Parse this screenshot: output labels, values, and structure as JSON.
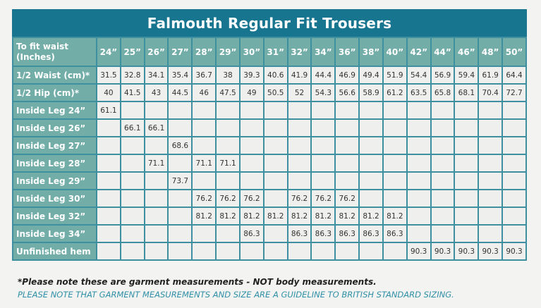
{
  "title": "Falmouth Regular Fit Trousers",
  "colors": {
    "title_bg": "#177590",
    "label_bg": "#72ada8",
    "cell_bg": "#efefed",
    "border": "#3e8fa0",
    "note_blue": "#2f8fa7"
  },
  "table": {
    "header_label": "To fit waist (Inches)",
    "sizes": [
      "24”",
      "25”",
      "26”",
      "27”",
      "28”",
      "29”",
      "30”",
      "31”",
      "32”",
      "34”",
      "36”",
      "38”",
      "40”",
      "42”",
      "44”",
      "46”",
      "48”",
      "50”"
    ],
    "rows": [
      {
        "label": "1/2 Waist (cm)*",
        "values": [
          "31.5",
          "32.8",
          "34.1",
          "35.4",
          "36.7",
          "38",
          "39.3",
          "40.6",
          "41.9",
          "44.4",
          "46.9",
          "49.4",
          "51.9",
          "54.4",
          "56.9",
          "59.4",
          "61.9",
          "64.4"
        ]
      },
      {
        "label": "1/2 Hip (cm)*",
        "values": [
          "40",
          "41.5",
          "43",
          "44.5",
          "46",
          "47.5",
          "49",
          "50.5",
          "52",
          "54.3",
          "56.6",
          "58.9",
          "61.2",
          "63.5",
          "65.8",
          "68.1",
          "70.4",
          "72.7"
        ]
      },
      {
        "label": "Inside Leg 24”",
        "values": [
          "61.1",
          "",
          "",
          "",
          "",
          "",
          "",
          "",
          "",
          "",
          "",
          "",
          "",
          "",
          "",
          "",
          "",
          ""
        ]
      },
      {
        "label": "Inside Leg 26”",
        "values": [
          "",
          "66.1",
          "66.1",
          "",
          "",
          "",
          "",
          "",
          "",
          "",
          "",
          "",
          "",
          "",
          "",
          "",
          "",
          ""
        ]
      },
      {
        "label": "Inside Leg 27”",
        "values": [
          "",
          "",
          "",
          "68.6",
          "",
          "",
          "",
          "",
          "",
          "",
          "",
          "",
          "",
          "",
          "",
          "",
          "",
          ""
        ]
      },
      {
        "label": "Inside Leg 28”",
        "values": [
          "",
          "",
          "71.1",
          "",
          "71.1",
          "71.1",
          "",
          "",
          "",
          "",
          "",
          "",
          "",
          "",
          "",
          "",
          "",
          ""
        ]
      },
      {
        "label": "Inside Leg 29”",
        "values": [
          "",
          "",
          "",
          "73.7",
          "",
          "",
          "",
          "",
          "",
          "",
          "",
          "",
          "",
          "",
          "",
          "",
          "",
          ""
        ]
      },
      {
        "label": "Inside Leg 30”",
        "values": [
          "",
          "",
          "",
          "",
          "76.2",
          "76.2",
          "76.2",
          "",
          "76.2",
          "76.2",
          "76.2",
          "",
          "",
          "",
          "",
          "",
          "",
          ""
        ]
      },
      {
        "label": "Inside Leg 32”",
        "values": [
          "",
          "",
          "",
          "",
          "81.2",
          "81.2",
          "81.2",
          "81.2",
          "81.2",
          "81.2",
          "81.2",
          "81.2",
          "81.2",
          "",
          "",
          "",
          "",
          ""
        ]
      },
      {
        "label": "Inside Leg 34”",
        "values": [
          "",
          "",
          "",
          "",
          "",
          "",
          "86.3",
          "",
          "86.3",
          "86.3",
          "86.3",
          "86.3",
          "86.3",
          "",
          "",
          "",
          "",
          ""
        ]
      },
      {
        "label": "Unfinished hem",
        "values": [
          "",
          "",
          "",
          "",
          "",
          "",
          "",
          "",
          "",
          "",
          "",
          "",
          "",
          "90.3",
          "90.3",
          "90.3",
          "90.3",
          "90.3"
        ]
      }
    ]
  },
  "notes": {
    "note1": "*Please note these are garment measurements - NOT body measurements.",
    "note2": "PLEASE NOTE THAT GARMENT MEASUREMENTS AND SIZE ARE A GUIDELINE TO BRITISH STANDARD SIZING."
  }
}
